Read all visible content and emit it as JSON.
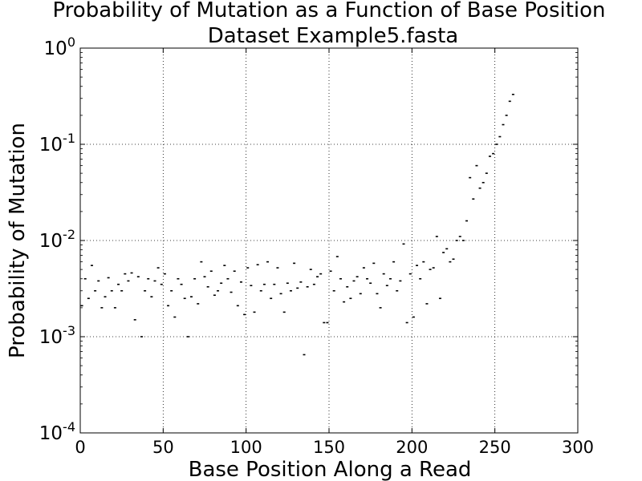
{
  "chart_data": {
    "type": "scatter",
    "title": "Probability of Mutation as a Function of Base Position",
    "subtitle": "Dataset Example5.fasta",
    "xlabel": "Base Position Along a Read",
    "ylabel": "Probability of Mutation",
    "xlim": [
      0,
      300
    ],
    "ylim": [
      0.0001,
      1
    ],
    "yscale": "log",
    "grid": true,
    "x_ticks": [
      {
        "value": 0,
        "label": "0"
      },
      {
        "value": 50,
        "label": "50"
      },
      {
        "value": 100,
        "label": "100"
      },
      {
        "value": 150,
        "label": "150"
      },
      {
        "value": 200,
        "label": "200"
      },
      {
        "value": 250,
        "label": "250"
      },
      {
        "value": 300,
        "label": "300"
      }
    ],
    "y_ticks": [
      {
        "value": 0.0001,
        "base": "10",
        "exp": "-4"
      },
      {
        "value": 0.001,
        "base": "10",
        "exp": "-3"
      },
      {
        "value": 0.01,
        "base": "10",
        "exp": "-2"
      },
      {
        "value": 0.1,
        "base": "10",
        "exp": "-1"
      },
      {
        "value": 1,
        "base": "10",
        "exp": "0"
      }
    ],
    "marker_color": "#000000",
    "series": [
      {
        "x": [
          1,
          3,
          5,
          7,
          9,
          11,
          13,
          15,
          17,
          19,
          21,
          23,
          25,
          27,
          29,
          31,
          33,
          35,
          37,
          39,
          41,
          43,
          45,
          47,
          49,
          51,
          53,
          55,
          57,
          59,
          61,
          63,
          65,
          67,
          69,
          71,
          73,
          75,
          77,
          79,
          81,
          83,
          85,
          87,
          89,
          91,
          93,
          95,
          97,
          99,
          101,
          103,
          105,
          107,
          109,
          111,
          113,
          115,
          117,
          119,
          121,
          123,
          125,
          127,
          129,
          131,
          133,
          135,
          137,
          139,
          141,
          143,
          145,
          147,
          149,
          151,
          153,
          155,
          157,
          159,
          161,
          163,
          165,
          167,
          169,
          171,
          173,
          175,
          177,
          179,
          181,
          183,
          185,
          187,
          189,
          191,
          193,
          195,
          197,
          199,
          201,
          203,
          205,
          207,
          209,
          211,
          213,
          215,
          217,
          219,
          221,
          223,
          225,
          227,
          229,
          231,
          233,
          235,
          237,
          239,
          241,
          243,
          245,
          247,
          249,
          251,
          253,
          255,
          257,
          259,
          261
        ],
        "y": [
          0.0021,
          0.004,
          0.0025,
          0.0055,
          0.003,
          0.0038,
          0.002,
          0.0026,
          0.0041,
          0.003,
          0.002,
          0.0035,
          0.003,
          0.0045,
          0.0038,
          0.0046,
          0.0015,
          0.0042,
          0.001,
          0.003,
          0.004,
          0.0026,
          0.0038,
          0.0052,
          0.0035,
          0.0045,
          0.0021,
          0.003,
          0.0016,
          0.004,
          0.0035,
          0.0025,
          0.001,
          0.0026,
          0.004,
          0.0022,
          0.006,
          0.0042,
          0.0033,
          0.0048,
          0.0027,
          0.003,
          0.0036,
          0.0055,
          0.004,
          0.0029,
          0.0048,
          0.0021,
          0.0037,
          0.0017,
          0.0052,
          0.0034,
          0.0018,
          0.0056,
          0.003,
          0.0035,
          0.006,
          0.0025,
          0.0035,
          0.0052,
          0.0028,
          0.0018,
          0.0036,
          0.003,
          0.0058,
          0.0032,
          0.0037,
          0.00065,
          0.0033,
          0.005,
          0.0035,
          0.0042,
          0.0045,
          0.0014,
          0.0014,
          0.0048,
          0.003,
          0.0068,
          0.004,
          0.0023,
          0.0033,
          0.0025,
          0.0038,
          0.0042,
          0.0028,
          0.0052,
          0.004,
          0.0036,
          0.0058,
          0.0028,
          0.002,
          0.0045,
          0.0034,
          0.004,
          0.006,
          0.003,
          0.0038,
          0.0092,
          0.0014,
          0.0045,
          0.0016,
          0.0055,
          0.004,
          0.006,
          0.0022,
          0.005,
          0.0052,
          0.011,
          0.0025,
          0.0075,
          0.0082,
          0.006,
          0.0064,
          0.01,
          0.011,
          0.01,
          0.016,
          0.045,
          0.027,
          0.06,
          0.035,
          0.04,
          0.05,
          0.075,
          0.08,
          0.1,
          0.12,
          0.16,
          0.2,
          0.28,
          0.33
        ]
      }
    ]
  }
}
